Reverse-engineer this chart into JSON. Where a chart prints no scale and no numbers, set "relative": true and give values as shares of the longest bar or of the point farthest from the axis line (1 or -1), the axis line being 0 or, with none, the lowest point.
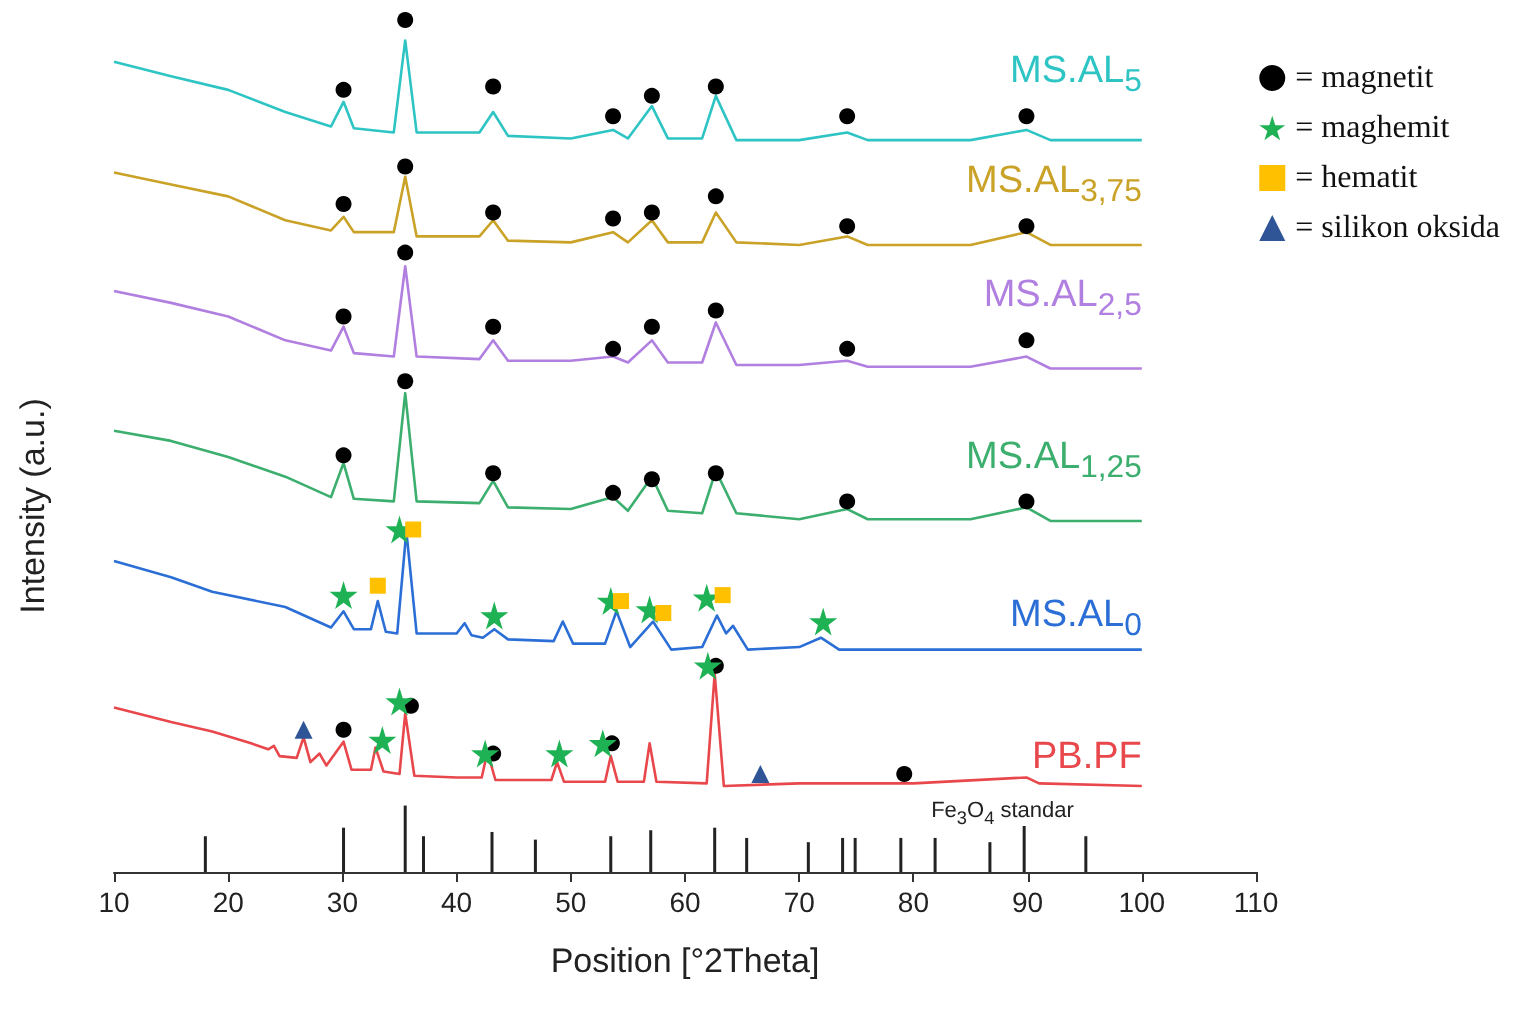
{
  "chart_data": {
    "type": "line",
    "relative": true,
    "xlabel": "Position [°2Theta]",
    "ylabel": "Intensity (a.u.)",
    "xlim": [
      10,
      110
    ],
    "xticks": [
      10,
      20,
      30,
      40,
      50,
      60,
      70,
      80,
      90,
      100,
      110
    ],
    "grid": false,
    "legend": "top right",
    "series": [
      {
        "name": "MS.AL$_{5}$",
        "color": "#2ec4c4",
        "x": [
          10,
          15,
          20,
          25,
          29,
          30.1,
          31,
          34.5,
          35.5,
          36.5,
          42,
          43.2,
          44.5,
          50,
          53.7,
          55,
          57.1,
          58.5,
          61.5,
          62.7,
          64.5,
          70,
          74.2,
          76,
          85,
          89.9,
          92,
          100
        ],
        "values": [
          0.951,
          0.934,
          0.918,
          0.892,
          0.875,
          0.904,
          0.873,
          0.868,
          0.976,
          0.868,
          0.868,
          0.892,
          0.864,
          0.861,
          0.871,
          0.861,
          0.899,
          0.861,
          0.861,
          0.911,
          0.859,
          0.859,
          0.868,
          0.859,
          0.859,
          0.871,
          0.859,
          0.859
        ]
      },
      {
        "name": "MS.AL$_{3,75}$",
        "color": "#c9a227",
        "x": [
          10,
          15,
          20,
          25,
          29,
          30.1,
          31,
          34.5,
          35.5,
          36.5,
          42,
          43.2,
          44.5,
          50,
          53.7,
          55,
          57.1,
          58.5,
          61.5,
          62.7,
          64.5,
          70,
          74.2,
          76,
          85,
          89.9,
          92,
          100
        ],
        "values": [
          0.821,
          0.807,
          0.793,
          0.765,
          0.753,
          0.769,
          0.751,
          0.751,
          0.816,
          0.746,
          0.746,
          0.765,
          0.741,
          0.739,
          0.751,
          0.739,
          0.765,
          0.739,
          0.739,
          0.774,
          0.739,
          0.736,
          0.746,
          0.736,
          0.736,
          0.751,
          0.736,
          0.736
        ]
      },
      {
        "name": "MS.AL$_{2,5}$",
        "color": "#b07fe0",
        "x": [
          10,
          15,
          20,
          25,
          29,
          30.1,
          31,
          34.5,
          35.5,
          36.5,
          42,
          43.2,
          44.5,
          50,
          53.7,
          55,
          57.1,
          58.5,
          61.5,
          62.7,
          64.5,
          70,
          74.2,
          76,
          85,
          89.9,
          92,
          100
        ],
        "values": [
          0.682,
          0.668,
          0.652,
          0.624,
          0.612,
          0.64,
          0.609,
          0.605,
          0.711,
          0.605,
          0.602,
          0.624,
          0.6,
          0.6,
          0.605,
          0.598,
          0.624,
          0.598,
          0.598,
          0.645,
          0.595,
          0.595,
          0.6,
          0.593,
          0.593,
          0.605,
          0.591,
          0.591
        ]
      },
      {
        "name": "MS.AL$_{1,25}$",
        "color": "#3cae6e",
        "x": [
          10,
          15,
          20,
          25,
          29,
          30.1,
          31,
          34.5,
          35.5,
          36.5,
          42,
          43.2,
          44.5,
          50,
          53.7,
          55,
          57.1,
          58.5,
          61.5,
          62.7,
          64.5,
          70,
          74.2,
          76,
          85,
          89.9,
          92,
          100
        ],
        "values": [
          0.518,
          0.506,
          0.487,
          0.464,
          0.44,
          0.48,
          0.438,
          0.435,
          0.562,
          0.435,
          0.433,
          0.459,
          0.428,
          0.426,
          0.44,
          0.424,
          0.464,
          0.424,
          0.421,
          0.471,
          0.421,
          0.414,
          0.426,
          0.414,
          0.414,
          0.428,
          0.412,
          0.412
        ]
      },
      {
        "name": "MS.AL$_{0}$",
        "color": "#2b6fd6",
        "x": [
          10,
          15,
          18.6,
          25,
          29,
          30.1,
          31,
          32.5,
          33.1,
          33.8,
          34.8,
          35.6,
          36.5,
          40,
          40.7,
          41.3,
          42.3,
          43.3,
          44.5,
          48.5,
          49.3,
          50.2,
          53,
          54,
          55.2,
          57.2,
          58.8,
          61.5,
          62.8,
          63.6,
          64.2,
          65.5,
          70,
          71.9,
          73.5,
          85,
          100
        ],
        "values": [
          0.365,
          0.346,
          0.329,
          0.311,
          0.287,
          0.306,
          0.285,
          0.285,
          0.318,
          0.282,
          0.28,
          0.4,
          0.28,
          0.28,
          0.292,
          0.278,
          0.275,
          0.285,
          0.273,
          0.271,
          0.294,
          0.268,
          0.268,
          0.306,
          0.264,
          0.294,
          0.261,
          0.264,
          0.301,
          0.28,
          0.289,
          0.261,
          0.264,
          0.275,
          0.261,
          0.261,
          0.261
        ]
      },
      {
        "name": "PB.PF",
        "color": "#e8474c",
        "x": [
          10,
          15,
          18.6,
          22,
          23.5,
          24,
          24.5,
          26,
          26.6,
          27.2,
          28,
          28.6,
          30.1,
          30.8,
          32.5,
          32.9,
          33.6,
          35,
          35.5,
          36.3,
          40,
          42.2,
          42.7,
          43.4,
          48.3,
          48.8,
          49.4,
          53,
          53.5,
          54.1,
          56.4,
          56.9,
          57.5,
          61.9,
          62.6,
          63.4,
          70,
          80,
          89.9,
          91,
          100
        ],
        "values": [
          0.193,
          0.176,
          0.165,
          0.151,
          0.144,
          0.148,
          0.136,
          0.134,
          0.158,
          0.129,
          0.139,
          0.125,
          0.153,
          0.12,
          0.12,
          0.146,
          0.118,
          0.115,
          0.186,
          0.113,
          0.111,
          0.111,
          0.141,
          0.108,
          0.108,
          0.129,
          0.106,
          0.106,
          0.136,
          0.106,
          0.106,
          0.151,
          0.106,
          0.104,
          0.233,
          0.101,
          0.104,
          0.104,
          0.111,
          0.104,
          0.101
        ]
      },
      {
        "name": "Fe$_{3}$O$_{4}$ standar",
        "type": "bar",
        "color": "#222222",
        "x": [
          18,
          30.1,
          35.5,
          37.1,
          43.1,
          46.9,
          53.5,
          57,
          62.6,
          65.4,
          70.8,
          73.8,
          74.9,
          78.9,
          81.9,
          86.7,
          89.7,
          95.1
        ],
        "values": [
          0.042,
          0.052,
          0.078,
          0.042,
          0.047,
          0.038,
          0.042,
          0.049,
          0.052,
          0.04,
          0.035,
          0.04,
          0.04,
          0.04,
          0.04,
          0.035,
          0.054,
          0.042
        ]
      },
      {
        "name": "= magnetit",
        "type": "scatter",
        "marker": "circle",
        "color": "#000000",
        "x": [
          30.1,
          35.5,
          43.2,
          53.7,
          57.1,
          62.7,
          74.2,
          89.9,
          30.1,
          35.5,
          43.2,
          53.7,
          57.1,
          62.7,
          74.2,
          89.9,
          30.1,
          35.5,
          43.2,
          53.7,
          57.1,
          62.7,
          74.2,
          89.9,
          30.1,
          35.5,
          43.2,
          53.7,
          57.1,
          62.7,
          74.2,
          89.9,
          30.1,
          36,
          43.2,
          53.6,
          62.7,
          79.2
        ],
        "values": [
          0.918,
          1,
          0.922,
          0.887,
          0.911,
          0.922,
          0.887,
          0.887,
          0.784,
          0.828,
          0.774,
          0.767,
          0.774,
          0.793,
          0.758,
          0.758,
          0.652,
          0.727,
          0.64,
          0.614,
          0.64,
          0.659,
          0.614,
          0.624,
          0.489,
          0.576,
          0.468,
          0.445,
          0.461,
          0.468,
          0.435,
          0.435,
          0.167,
          0.195,
          0.139,
          0.151,
          0.242,
          0.115
        ]
      },
      {
        "name": "= maghemit",
        "type": "scatter",
        "marker": "star",
        "color": "#1fb255",
        "x": [
          30.1,
          35,
          43.3,
          53.5,
          56.9,
          61.9,
          72.1,
          33.5,
          35,
          42.5,
          49,
          52.8,
          62
        ],
        "values": [
          0.325,
          0.402,
          0.301,
          0.318,
          0.308,
          0.322,
          0.294,
          0.155,
          0.2,
          0.139,
          0.139,
          0.151,
          0.242
        ]
      },
      {
        "name": "= hematit",
        "type": "scatter",
        "marker": "square",
        "color": "#ffc000",
        "x": [
          33.1,
          36.2,
          54.4,
          58.1,
          63.3
        ],
        "values": [
          0.336,
          0.402,
          0.318,
          0.304,
          0.325
        ]
      },
      {
        "name": "= silikon oksida",
        "type": "scatter",
        "marker": "triangle",
        "color": "#2f5597",
        "x": [
          26.6,
          66.6
        ],
        "values": [
          0.167,
          0.115
        ]
      }
    ]
  }
}
